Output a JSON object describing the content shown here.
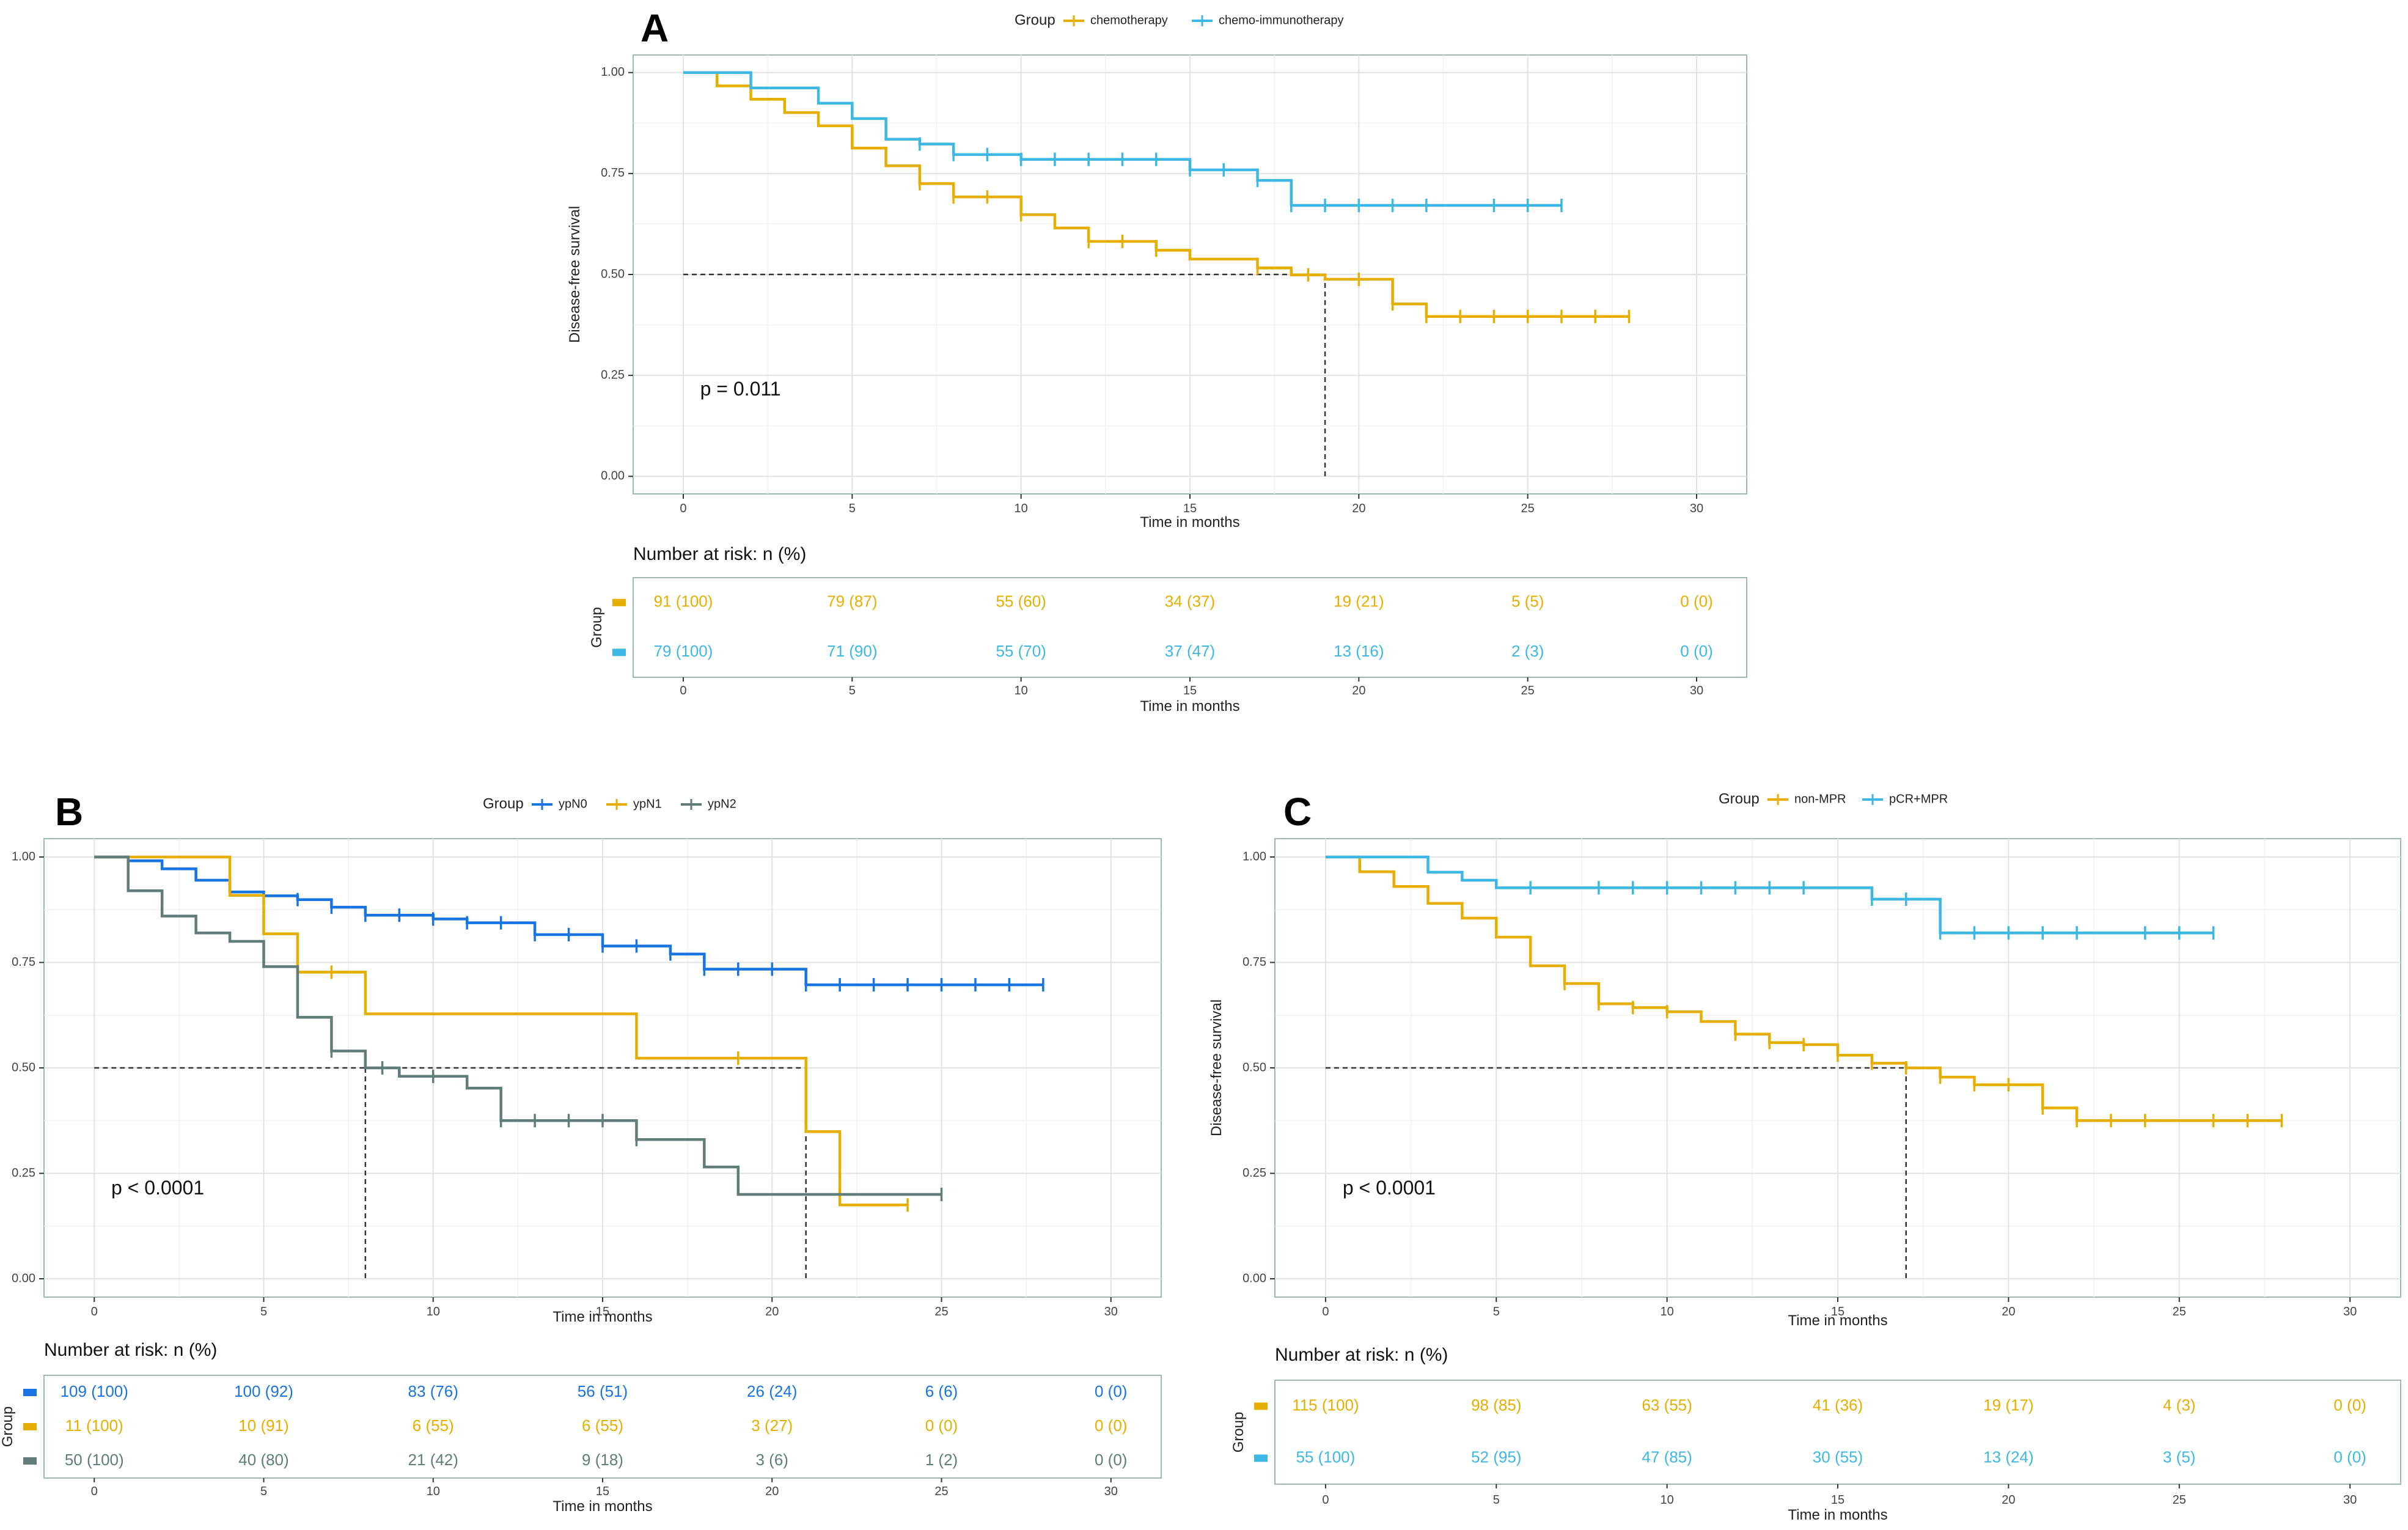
{
  "chart_data": [
    {
      "id": "A",
      "type": "line",
      "subtype": "kaplan-meier",
      "panel_label": "A",
      "legend_title": "Group",
      "ylabel": "Disease-free survival",
      "xlabel": "Time in months",
      "xlim": [
        0,
        30
      ],
      "ylim": [
        0,
        1
      ],
      "x_ticks": [
        0,
        5,
        10,
        15,
        20,
        25,
        30
      ],
      "y_ticks": [
        "0.00",
        "0.25",
        "0.50",
        "0.75",
        "1.00"
      ],
      "p_value": "p = 0.011",
      "median_lines": [
        19
      ],
      "risk_title": "Number at risk: n (%)",
      "risk_ylabel": "Group",
      "series": [
        {
          "name": "chemotherapy",
          "color": "#E6AE00",
          "steps": [
            [
              0,
              1
            ],
            [
              1,
              0.967
            ],
            [
              2,
              0.934
            ],
            [
              3,
              0.901
            ],
            [
              4,
              0.868
            ],
            [
              5,
              0.813
            ],
            [
              6,
              0.769
            ],
            [
              7,
              0.725
            ],
            [
              8,
              0.692
            ],
            [
              10,
              0.648
            ],
            [
              11,
              0.615
            ],
            [
              12,
              0.582
            ],
            [
              14,
              0.56
            ],
            [
              15,
              0.538
            ],
            [
              17,
              0.516
            ],
            [
              18,
              0.499
            ],
            [
              19,
              0.488
            ],
            [
              21,
              0.427
            ],
            [
              22,
              0.396
            ],
            [
              28,
              0.396
            ]
          ],
          "censors": [
            7,
            8,
            9,
            10,
            12,
            13,
            14,
            17,
            18.5,
            20,
            21,
            22,
            23,
            24,
            25,
            26,
            27,
            28
          ],
          "risk": [
            "91 (100)",
            "79 (87)",
            "55 (60)",
            "34 (37)",
            "19 (21)",
            "5 (5)",
            "0 (0)"
          ]
        },
        {
          "name": "chemo-immunotherapy",
          "color": "#3DB7E4",
          "steps": [
            [
              0,
              1
            ],
            [
              2,
              0.962
            ],
            [
              4,
              0.924
            ],
            [
              5,
              0.886
            ],
            [
              6,
              0.835
            ],
            [
              7,
              0.823
            ],
            [
              8,
              0.797
            ],
            [
              10,
              0.785
            ],
            [
              15,
              0.759
            ],
            [
              17,
              0.733
            ],
            [
              18,
              0.671
            ],
            [
              26,
              0.671
            ]
          ],
          "censors": [
            7,
            8,
            9,
            10,
            11,
            12,
            13,
            14,
            15,
            16,
            17,
            18,
            19,
            20,
            21,
            22,
            24,
            25,
            26
          ],
          "risk": [
            "79 (100)",
            "71 (90)",
            "55 (70)",
            "37 (47)",
            "13 (16)",
            "2 (3)",
            "0 (0)"
          ]
        }
      ]
    },
    {
      "id": "B",
      "type": "line",
      "subtype": "kaplan-meier",
      "panel_label": "B",
      "legend_title": "Group",
      "ylabel": "Disease-free survival",
      "xlabel": "Time in months",
      "xlim": [
        0,
        30
      ],
      "ylim": [
        0,
        1
      ],
      "x_ticks": [
        0,
        5,
        10,
        15,
        20,
        25,
        30
      ],
      "y_ticks": [
        "0.00",
        "0.25",
        "0.50",
        "0.75",
        "1.00"
      ],
      "p_value": "p < 0.0001",
      "median_lines": [
        8,
        21
      ],
      "risk_title": "Number at risk: n (%)",
      "risk_ylabel": "Group",
      "series": [
        {
          "name": "ypN0",
          "color": "#1874E0",
          "steps": [
            [
              0,
              1
            ],
            [
              1,
              0.991
            ],
            [
              2,
              0.972
            ],
            [
              3,
              0.945
            ],
            [
              4,
              0.917
            ],
            [
              5,
              0.908
            ],
            [
              6,
              0.899
            ],
            [
              7,
              0.881
            ],
            [
              8,
              0.862
            ],
            [
              10,
              0.853
            ],
            [
              11,
              0.844
            ],
            [
              13,
              0.816
            ],
            [
              15,
              0.789
            ],
            [
              17,
              0.77
            ],
            [
              18,
              0.734
            ],
            [
              21,
              0.697
            ],
            [
              28,
              0.697
            ]
          ],
          "censors": [
            6,
            7,
            8,
            9,
            10,
            11,
            12,
            13,
            14,
            15,
            16,
            17,
            18,
            19,
            20,
            21,
            22,
            23,
            24,
            25,
            26,
            27,
            28
          ],
          "risk": [
            "109 (100)",
            "100 (92)",
            "83 (76)",
            "56 (51)",
            "26 (24)",
            "6 (6)",
            "0 (0)"
          ]
        },
        {
          "name": "ypN1",
          "color": "#E6AE00",
          "steps": [
            [
              0,
              1
            ],
            [
              4,
              0.909
            ],
            [
              5,
              0.818
            ],
            [
              6,
              0.727
            ],
            [
              8,
              0.628
            ],
            [
              16,
              0.523
            ],
            [
              21,
              0.349
            ],
            [
              22,
              0.175
            ],
            [
              24,
              0.175
            ]
          ],
          "censors": [
            7,
            19,
            24
          ],
          "risk": [
            "11 (100)",
            "10 (91)",
            "6 (55)",
            "6 (55)",
            "3 (27)",
            "0 (0)",
            "0 (0)"
          ]
        },
        {
          "name": "ypN2",
          "color": "#607D7A",
          "steps": [
            [
              0,
              1
            ],
            [
              1,
              0.92
            ],
            [
              2,
              0.86
            ],
            [
              3,
              0.82
            ],
            [
              4,
              0.8
            ],
            [
              5,
              0.74
            ],
            [
              6,
              0.62
            ],
            [
              7,
              0.54
            ],
            [
              8,
              0.5
            ],
            [
              9,
              0.48
            ],
            [
              11,
              0.452
            ],
            [
              12,
              0.375
            ],
            [
              16,
              0.33
            ],
            [
              18,
              0.265
            ],
            [
              19,
              0.2
            ],
            [
              25,
              0.2
            ]
          ],
          "censors": [
            7,
            8.5,
            10,
            12,
            13,
            14,
            15,
            16,
            25
          ],
          "risk": [
            "50 (100)",
            "40 (80)",
            "21 (42)",
            "9 (18)",
            "3 (6)",
            "1 (2)",
            "0 (0)"
          ]
        }
      ]
    },
    {
      "id": "C",
      "type": "line",
      "subtype": "kaplan-meier",
      "panel_label": "C",
      "legend_title": "Group",
      "ylabel": "Disease-free survival",
      "xlabel": "Time in months",
      "xlim": [
        0,
        30
      ],
      "ylim": [
        0,
        1
      ],
      "x_ticks": [
        0,
        5,
        10,
        15,
        20,
        25,
        30
      ],
      "y_ticks": [
        "0.00",
        "0.25",
        "0.50",
        "0.75",
        "1.00"
      ],
      "p_value": "p < 0.0001",
      "median_lines": [
        17
      ],
      "risk_title": "Number at risk: n (%)",
      "risk_ylabel": "Group",
      "series": [
        {
          "name": "non-MPR",
          "color": "#E6AE00",
          "steps": [
            [
              0,
              1
            ],
            [
              1,
              0.965
            ],
            [
              2,
              0.93
            ],
            [
              3,
              0.89
            ],
            [
              4,
              0.855
            ],
            [
              5,
              0.81
            ],
            [
              6,
              0.742
            ],
            [
              7,
              0.7
            ],
            [
              8,
              0.652
            ],
            [
              9,
              0.643
            ],
            [
              10,
              0.633
            ],
            [
              11,
              0.61
            ],
            [
              12,
              0.58
            ],
            [
              13,
              0.56
            ],
            [
              14,
              0.555
            ],
            [
              15,
              0.53
            ],
            [
              16,
              0.511
            ],
            [
              17,
              0.5
            ],
            [
              18,
              0.478
            ],
            [
              19,
              0.46
            ],
            [
              21,
              0.405
            ],
            [
              22,
              0.375
            ],
            [
              28,
              0.375
            ]
          ],
          "censors": [
            7,
            8,
            9,
            10,
            12,
            13,
            14,
            15,
            16,
            17,
            18,
            19,
            20,
            21,
            22,
            23,
            24,
            26,
            27,
            28
          ],
          "risk": [
            "115 (100)",
            "98 (85)",
            "63 (55)",
            "41 (36)",
            "19 (17)",
            "4 (3)",
            "0 (0)"
          ]
        },
        {
          "name": "pCR+MPR",
          "color": "#3DB7E4",
          "steps": [
            [
              0,
              1
            ],
            [
              3,
              0.964
            ],
            [
              4,
              0.945
            ],
            [
              5,
              0.927
            ],
            [
              16,
              0.9
            ],
            [
              18,
              0.82
            ],
            [
              26,
              0.82
            ]
          ],
          "censors": [
            6,
            8,
            9,
            10,
            11,
            12,
            13,
            14,
            16,
            17,
            18,
            19,
            20,
            21,
            22,
            24,
            25,
            26
          ],
          "risk": [
            "55 (100)",
            "52 (95)",
            "47 (85)",
            "30 (55)",
            "13 (24)",
            "3 (5)",
            "0 (0)"
          ]
        }
      ]
    }
  ]
}
